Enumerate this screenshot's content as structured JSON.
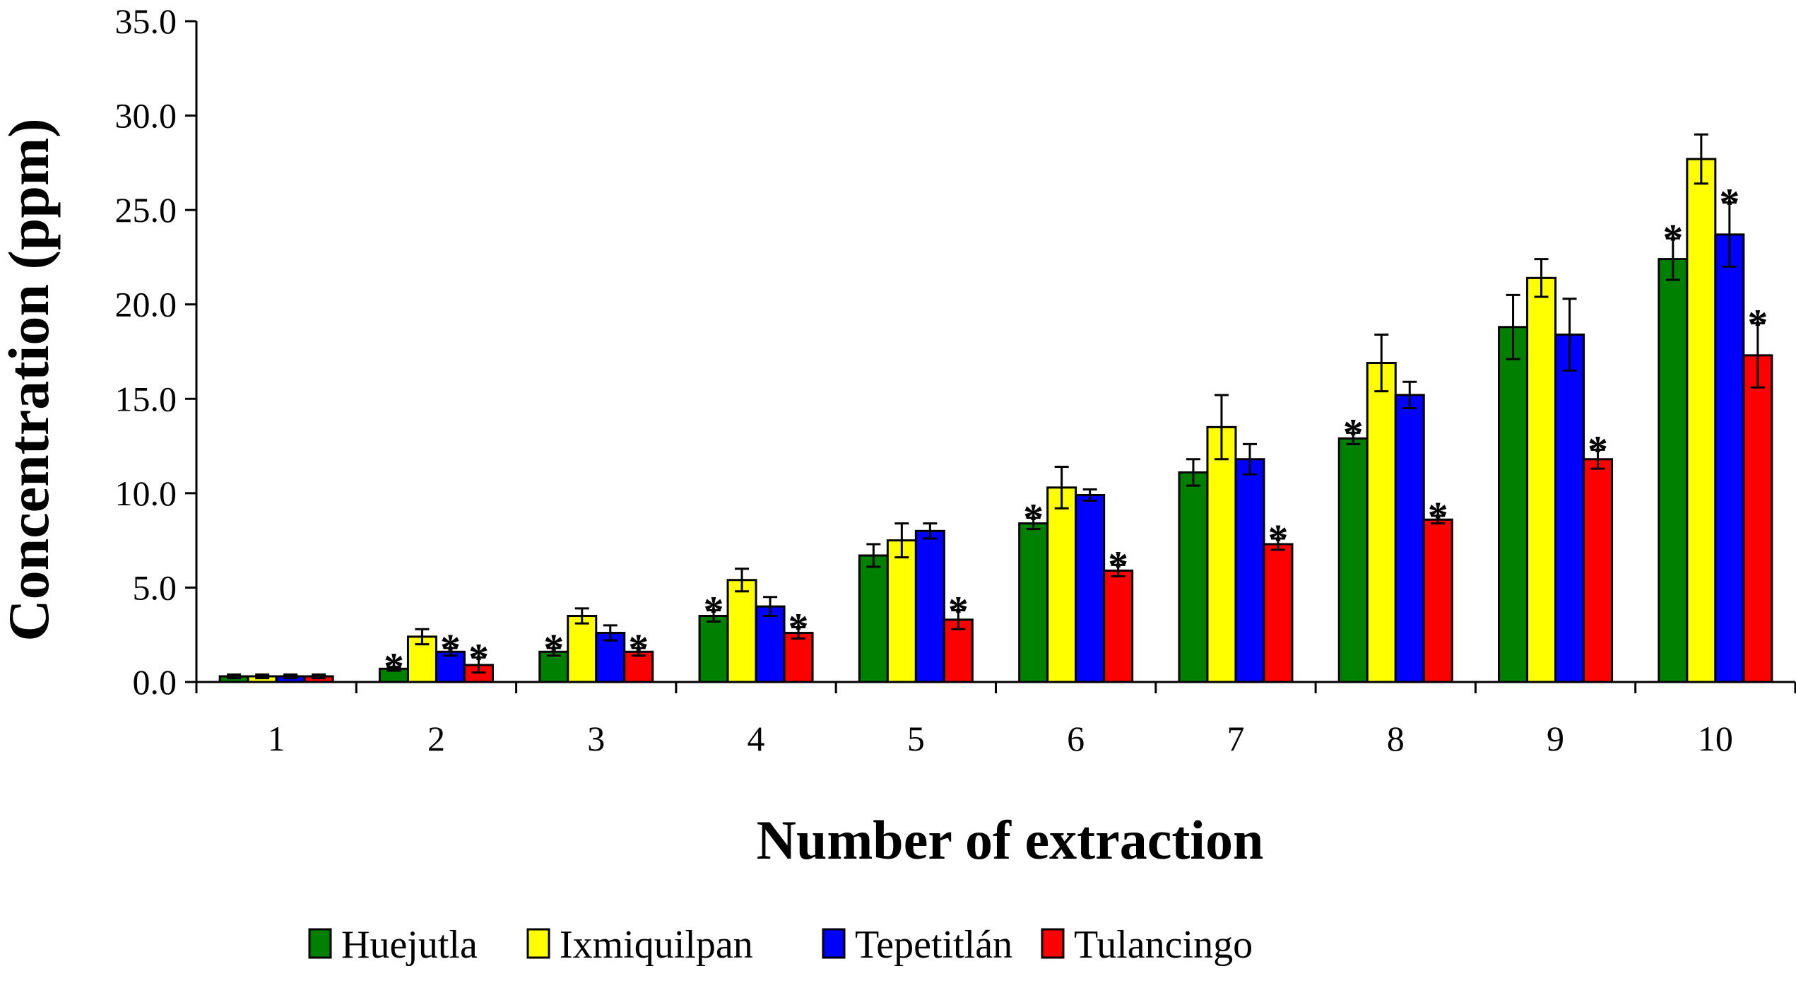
{
  "chart_data": {
    "type": "bar",
    "title": "",
    "xlabel": "Number of extraction",
    "ylabel": "Concentration (ppm)",
    "ylim": [
      0,
      35
    ],
    "yticks": [
      "0.0",
      "5.0",
      "10.0",
      "15.0",
      "20.0",
      "25.0",
      "30.0",
      "35.0"
    ],
    "categories": [
      "1",
      "2",
      "3",
      "4",
      "5",
      "6",
      "7",
      "8",
      "9",
      "10"
    ],
    "legend_position": "bottom",
    "series": [
      {
        "name": "Huejutla",
        "color": "#008000",
        "values": [
          0.3,
          0.7,
          1.6,
          3.5,
          6.7,
          8.4,
          11.1,
          12.9,
          18.8,
          22.4
        ],
        "errors": [
          0.1,
          0.1,
          0.2,
          0.3,
          0.6,
          0.3,
          0.7,
          0.3,
          1.7,
          1.1
        ],
        "sig": [
          false,
          true,
          true,
          true,
          false,
          true,
          false,
          true,
          false,
          true
        ]
      },
      {
        "name": "Ixmiquilpan",
        "color": "#ffff00",
        "values": [
          0.3,
          2.4,
          3.5,
          5.4,
          7.5,
          10.3,
          13.5,
          16.9,
          21.4,
          27.7
        ],
        "errors": [
          0.1,
          0.4,
          0.4,
          0.6,
          0.9,
          1.1,
          1.7,
          1.5,
          1.0,
          1.3
        ],
        "sig": [
          false,
          false,
          false,
          false,
          false,
          false,
          false,
          false,
          false,
          false
        ]
      },
      {
        "name": "Tepetitlán",
        "color": "#0000ff",
        "values": [
          0.3,
          1.6,
          2.6,
          4.0,
          8.0,
          9.9,
          11.8,
          15.2,
          18.4,
          23.7
        ],
        "errors": [
          0.1,
          0.2,
          0.4,
          0.5,
          0.4,
          0.3,
          0.8,
          0.7,
          1.9,
          1.7
        ],
        "sig": [
          false,
          true,
          false,
          false,
          false,
          false,
          false,
          false,
          false,
          true
        ]
      },
      {
        "name": "Tulancingo",
        "color": "#ff0000",
        "values": [
          0.3,
          0.9,
          1.6,
          2.6,
          3.3,
          5.9,
          7.3,
          8.6,
          11.8,
          17.3
        ],
        "errors": [
          0.1,
          0.4,
          0.2,
          0.3,
          0.5,
          0.3,
          0.3,
          0.2,
          0.5,
          1.7
        ],
        "sig": [
          false,
          true,
          true,
          true,
          true,
          true,
          true,
          true,
          true,
          true
        ]
      }
    ],
    "sig_symbol": "*"
  }
}
